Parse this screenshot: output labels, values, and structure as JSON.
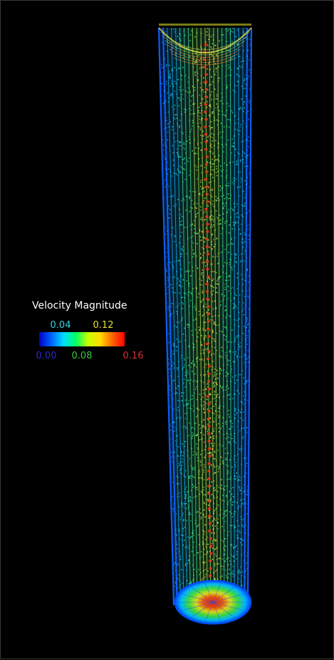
{
  "legend": {
    "title": "Velocity Magnitude",
    "ticks_top": [
      {
        "label": "0.04",
        "value": 0.04,
        "color": "#33d6e0"
      },
      {
        "label": "0.12",
        "value": 0.12,
        "color": "#e6e03a"
      }
    ],
    "ticks_bottom": [
      {
        "label": "0.00",
        "value": 0.0,
        "color": "#2a2ad0"
      },
      {
        "label": "0.08",
        "value": 0.08,
        "color": "#3bc83b"
      },
      {
        "label": "0.16",
        "value": 0.16,
        "color": "#d43030"
      }
    ],
    "range": [
      0.0,
      0.16
    ],
    "colormap": [
      "#0000c8",
      "#0064ff",
      "#00dcff",
      "#00ff64",
      "#c8ff00",
      "#ffdc00",
      "#ff6400",
      "#ff0000"
    ]
  },
  "colors": {
    "background": "#000000",
    "legend_text": "#ffffff"
  }
}
